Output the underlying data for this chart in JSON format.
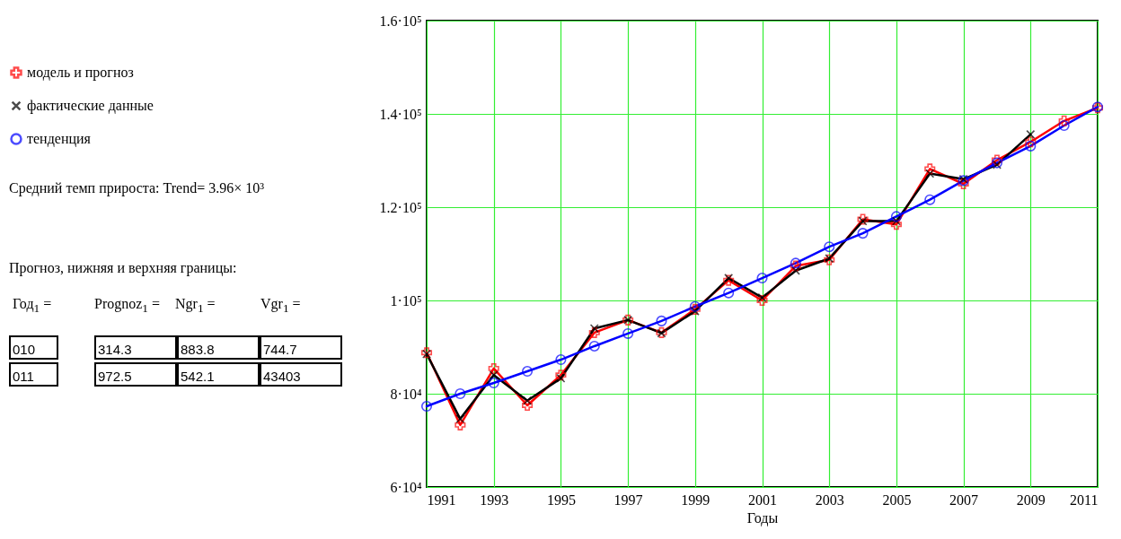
{
  "chart_data": {
    "type": "line",
    "xlabel": "Годы",
    "x": [
      1991,
      1992,
      1993,
      1994,
      1995,
      1996,
      1997,
      1998,
      1999,
      2000,
      2001,
      2002,
      2003,
      2004,
      2005,
      2006,
      2007,
      2008,
      2009,
      2010,
      2011
    ],
    "series": [
      {
        "name": "модель и прогноз",
        "color": "#ff0000",
        "marker": "plus",
        "values": [
          88800,
          73300,
          85400,
          77500,
          84000,
          93100,
          95800,
          93100,
          98100,
          104300,
          100000,
          107400,
          108700,
          117400,
          116300,
          128200,
          125000,
          130100,
          134000,
          138500,
          141300
        ]
      },
      {
        "name": "фактические данные",
        "color": "#000000",
        "marker": "cross",
        "values": [
          88500,
          74600,
          84000,
          78500,
          83300,
          94000,
          95800,
          93000,
          97700,
          104800,
          100600,
          106400,
          109000,
          117000,
          117000,
          127200,
          126000,
          129100,
          135600,
          null,
          null
        ]
      },
      {
        "name": "тенденция",
        "color": "#0000ff",
        "marker": "circle",
        "values": [
          77300,
          80000,
          82300,
          84800,
          87300,
          90200,
          92900,
          95600,
          98700,
          101600,
          104800,
          108000,
          111500,
          114400,
          118000,
          121600,
          125700,
          129500,
          133100,
          137500,
          141500
        ]
      }
    ],
    "xlim": [
      1991,
      2011
    ],
    "xticks": [
      1991,
      1993,
      1995,
      1997,
      1999,
      2001,
      2003,
      2005,
      2007,
      2009,
      2011
    ],
    "ylim": [
      60000,
      160000
    ],
    "yticks": [
      {
        "value": 60000,
        "label": "6·10⁴"
      },
      {
        "value": 80000,
        "label": "8·10⁴"
      },
      {
        "value": 100000,
        "label": "1·10⁵"
      },
      {
        "value": 120000,
        "label": "1.2·10⁵"
      },
      {
        "value": 140000,
        "label": "1.4·10⁵"
      },
      {
        "value": 160000,
        "label": "1.6·10⁵"
      }
    ],
    "grid": true,
    "legend": "left",
    "line_style": "solid",
    "annotations": [
      "Средний темп прироста: Trend= 3.96× 10³",
      "Прогноз, нижняя и верхняя границы:",
      "Год$_{1}$ =",
      "Prognoz$_{1}$ =",
      "Ngr$_{1}$ =",
      "Vgr$_{1}$ =",
      "010",
      "011",
      "314.3",
      "972.5",
      "883.8",
      "542.1",
      "744.7",
      "43403"
    ]
  }
}
